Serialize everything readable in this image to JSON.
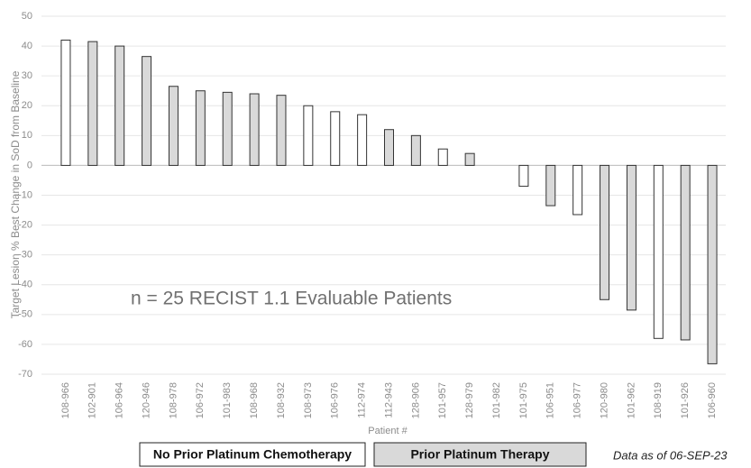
{
  "chart_data": {
    "type": "bar",
    "y_label": "Target Lesion % Best Change in SoD from Baseline",
    "x_label": "Patient #",
    "annotation": "n = 25 RECIST 1.1 Evaluable Patients",
    "footnote": "Data as of 06-SEP-23",
    "categories": [
      "108-966",
      "102-901",
      "106-964",
      "120-946",
      "108-978",
      "106-972",
      "101-983",
      "108-968",
      "108-932",
      "108-973",
      "106-976",
      "112-974",
      "112-943",
      "128-906",
      "101-957",
      "128-979",
      "101-982",
      "101-975",
      "106-951",
      "106-977",
      "120-980",
      "101-962",
      "108-919",
      "101-926",
      "106-960"
    ],
    "values": [
      42,
      41.5,
      40,
      36.5,
      26.5,
      25,
      24.5,
      24,
      23.5,
      20,
      18,
      17,
      12,
      10,
      5.5,
      4,
      0,
      -7,
      -13.5,
      -16.5,
      -45,
      -48.5,
      -58,
      -58.5,
      -66.5
    ],
    "colors": [
      "#ffffff",
      "#d9d9d9",
      "#d9d9d9",
      "#d9d9d9",
      "#d9d9d9",
      "#d9d9d9",
      "#d9d9d9",
      "#d9d9d9",
      "#d9d9d9",
      "#ffffff",
      "#ffffff",
      "#ffffff",
      "#d9d9d9",
      "#d9d9d9",
      "#ffffff",
      "#d9d9d9",
      "#ffffff",
      "#ffffff",
      "#d9d9d9",
      "#ffffff",
      "#d9d9d9",
      "#d9d9d9",
      "#ffffff",
      "#d9d9d9",
      "#d9d9d9"
    ],
    "legend": [
      {
        "label": "No Prior Platinum Chemotherapy",
        "color": "#ffffff"
      },
      {
        "label": "Prior Platinum Therapy",
        "color": "#d9d9d9"
      }
    ],
    "ylim": [
      -70,
      50
    ],
    "yticks": [
      -70,
      -60,
      -50,
      -40,
      -30,
      -20,
      -10,
      0,
      10,
      20,
      30,
      40,
      50
    ],
    "grid": true
  }
}
